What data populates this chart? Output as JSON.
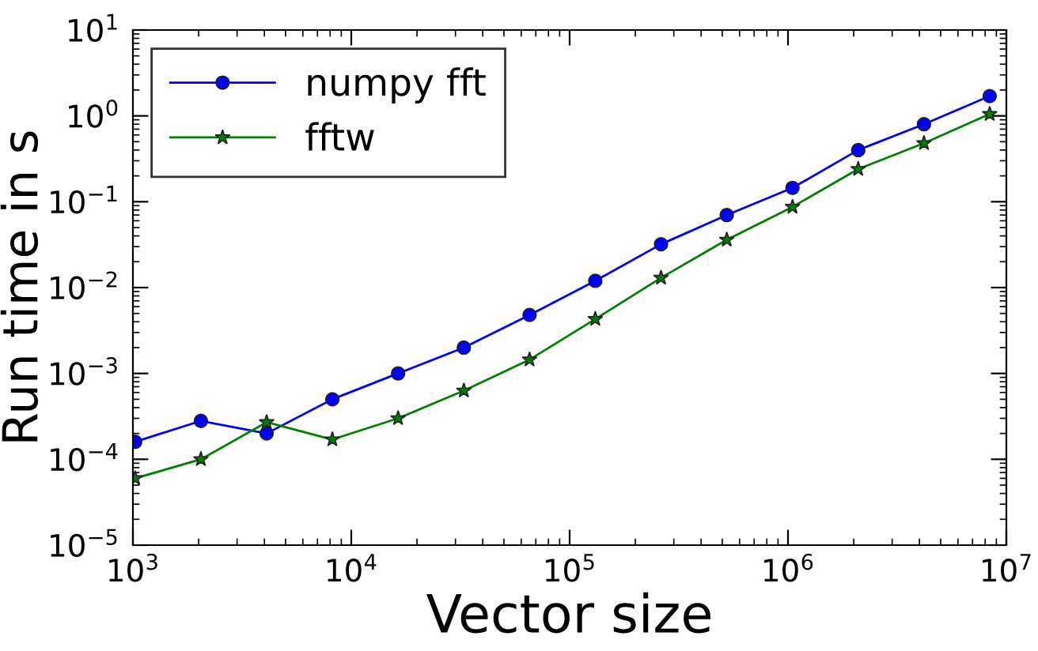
{
  "chart_data": {
    "type": "line",
    "xlabel": "Vector size",
    "ylabel": "Run time in s",
    "log": "xy",
    "grid": false,
    "legend": "top left",
    "x": [
      1024,
      2048,
      4096,
      8192,
      16384,
      32768,
      65536,
      131072,
      262144,
      524288,
      1048576,
      2097152,
      4194304,
      8388608
    ],
    "series": [
      {
        "name": "numpy fft",
        "color": "#0000ff",
        "marker": "circle",
        "values": [
          0.00016,
          0.00028,
          0.0002,
          0.0005,
          0.001,
          0.002,
          0.0048,
          0.012,
          0.032,
          0.07,
          0.145,
          0.4,
          0.8,
          1.7
        ]
      },
      {
        "name": "fftw",
        "color": "#008000",
        "marker": "star",
        "values": [
          6e-05,
          0.0001,
          0.00027,
          0.00017,
          0.0003,
          0.00063,
          0.00145,
          0.0043,
          0.013,
          0.036,
          0.087,
          0.24,
          0.48,
          1.05
        ]
      }
    ],
    "xlim": [
      1000,
      10000000
    ],
    "ylim": [
      1e-05,
      10
    ],
    "xticks": [
      {
        "value": 1000,
        "label": "10$^{3}$"
      },
      {
        "value": 10000,
        "label": "10$^{4}$"
      },
      {
        "value": 100000,
        "label": "10$^{5}$"
      },
      {
        "value": 1000000,
        "label": "10$^{6}$"
      },
      {
        "value": 10000000,
        "label": "10$^{7}$"
      }
    ],
    "yticks": [
      {
        "value": 1e-05,
        "label": "10$^{−5}$"
      },
      {
        "value": 0.0001,
        "label": "10$^{−4}$"
      },
      {
        "value": 0.001,
        "label": "10$^{−3}$"
      },
      {
        "value": 0.01,
        "label": "10$^{−2}$"
      },
      {
        "value": 0.1,
        "label": "10$^{−1}$"
      },
      {
        "value": 1,
        "label": "10$^{0}$"
      },
      {
        "value": 10,
        "label": "10$^{1}$"
      }
    ]
  }
}
